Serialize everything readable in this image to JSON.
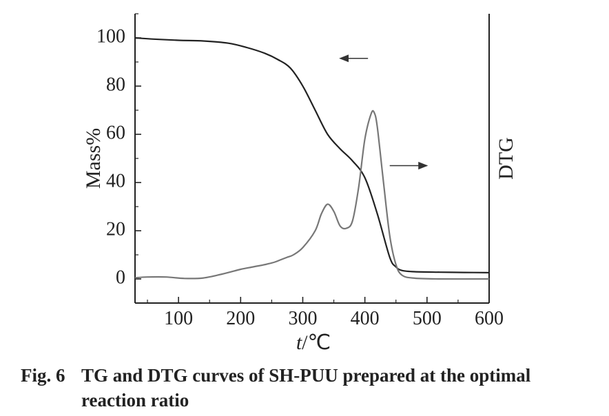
{
  "chart_data": {
    "type": "line",
    "title": "",
    "xlabel_italic": "t",
    "xlabel_unit": "/℃",
    "ylabel": "Mass%",
    "ylabel_right": "DTG",
    "xlim": [
      30,
      600
    ],
    "ylim": [
      -10,
      110
    ],
    "x_ticks": [
      100,
      200,
      300,
      400,
      500,
      600
    ],
    "x_tick_labels": [
      "100",
      "200",
      "300",
      "400",
      "500",
      "600"
    ],
    "y_ticks": [
      0,
      20,
      40,
      60,
      80,
      100
    ],
    "y_tick_labels": [
      "0",
      "20",
      "40",
      "60",
      "80",
      "100"
    ],
    "series": [
      {
        "name": "TG",
        "color": "#222222",
        "x": [
          30,
          60,
          100,
          140,
          180,
          210,
          240,
          260,
          280,
          300,
          320,
          340,
          360,
          380,
          400,
          420,
          440,
          450,
          460,
          480,
          520,
          560,
          600
        ],
        "y": [
          100,
          99.5,
          99,
          98.7,
          97.8,
          96,
          93.5,
          91,
          87.5,
          80,
          70,
          60,
          54,
          49,
          42,
          27,
          9,
          5,
          3.5,
          3,
          2.8,
          2.7,
          2.6
        ]
      },
      {
        "name": "DTG",
        "color": "#777777",
        "x": [
          30,
          50,
          80,
          110,
          140,
          170,
          200,
          220,
          240,
          255,
          265,
          275,
          285,
          300,
          320,
          330,
          340,
          350,
          360,
          370,
          380,
          390,
          400,
          410,
          415,
          420,
          430,
          440,
          450,
          460,
          480,
          520,
          600
        ],
        "y": [
          0.5,
          0.8,
          0.8,
          0.2,
          0.4,
          2,
          4,
          5,
          6,
          7,
          8,
          9,
          10,
          13,
          20,
          27,
          31,
          28,
          22,
          21,
          24,
          38,
          58,
          68.5,
          69,
          63,
          40,
          18,
          6,
          1.5,
          0.3,
          0,
          0
        ]
      }
    ],
    "annotations": [
      {
        "type": "arrow",
        "direction": "left",
        "points_to": "left axis",
        "series": "TG",
        "from": [
          405,
          91.5
        ],
        "to": [
          360,
          91.5
        ]
      },
      {
        "type": "arrow",
        "direction": "right",
        "points_to": "right axis",
        "series": "DTG",
        "from": [
          440,
          47
        ],
        "to": [
          500,
          47
        ]
      }
    ]
  },
  "caption": {
    "number": "Fig. 6",
    "text": "TG and DTG curves of SH-PUU prepared at the optimal reaction ratio"
  }
}
